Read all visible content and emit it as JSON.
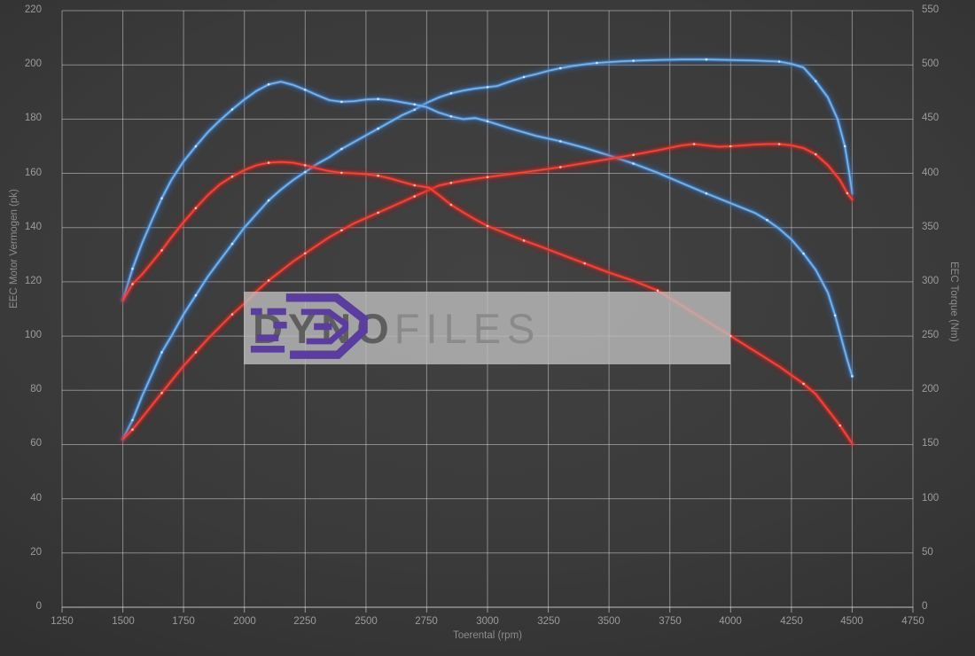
{
  "watermark": {
    "brand_bold": "DYNO",
    "brand_light": "FILES",
    "logo_color": "#5a3d9e",
    "bar_color": "rgba(189,189,189,0.8)"
  },
  "colors": {
    "blue_glow": "#2d6cbe",
    "blue_mid": "#4e93d9",
    "blue_core": "#79b5ec",
    "blue_dot": "#d9ecff",
    "red_glow": "#b51d1d",
    "red_mid": "#dd3127",
    "red_core": "#f4483a",
    "red_dot": "#ffd0c8",
    "grid": "rgba(219,219,219,0.5)",
    "axis_line": "rgba(228,228,228,0.8)",
    "tick": "#9c9c9c"
  },
  "chart_data": {
    "type": "line",
    "xlabel": "Toerental (rpm)",
    "ylabel_left": "EEC Motor Vermogen (pk)",
    "ylabel_right": "EEC Torque (Nm)",
    "xlim": [
      1250,
      4750
    ],
    "ylim_left": [
      0,
      220
    ],
    "ylim_right": [
      0,
      550
    ],
    "xticks": [
      1250,
      1500,
      1750,
      2000,
      2250,
      2500,
      2750,
      3000,
      3250,
      3500,
      3750,
      4000,
      4250,
      4500,
      4750
    ],
    "yticks_left": [
      0,
      20,
      40,
      60,
      80,
      100,
      120,
      140,
      160,
      180,
      200,
      220
    ],
    "yticks_right": [
      0,
      50,
      100,
      150,
      200,
      250,
      300,
      350,
      400,
      450,
      500,
      550
    ],
    "grid": true,
    "legend": "none",
    "series": [
      {
        "name": "power-tuned-blue",
        "axis": "left",
        "unit": "pk",
        "color_key": "blue",
        "points": [
          [
            1500,
            62
          ],
          [
            1540,
            69
          ],
          [
            1580,
            78
          ],
          [
            1620,
            86
          ],
          [
            1660,
            94
          ],
          [
            1700,
            100
          ],
          [
            1750,
            108
          ],
          [
            1800,
            115
          ],
          [
            1850,
            122
          ],
          [
            1900,
            128
          ],
          [
            1950,
            134
          ],
          [
            2000,
            140
          ],
          [
            2050,
            145
          ],
          [
            2100,
            150
          ],
          [
            2150,
            154
          ],
          [
            2200,
            157.5
          ],
          [
            2250,
            160.5
          ],
          [
            2300,
            163.5
          ],
          [
            2350,
            166
          ],
          [
            2400,
            169
          ],
          [
            2450,
            171.5
          ],
          [
            2500,
            174
          ],
          [
            2550,
            176.5
          ],
          [
            2600,
            179
          ],
          [
            2650,
            181.5
          ],
          [
            2700,
            183.5
          ],
          [
            2750,
            186
          ],
          [
            2800,
            188
          ],
          [
            2850,
            189.5
          ],
          [
            2900,
            190.5
          ],
          [
            2950,
            191.3
          ],
          [
            3000,
            191.8
          ],
          [
            3040,
            192.2
          ],
          [
            3090,
            193.8
          ],
          [
            3150,
            195.5
          ],
          [
            3200,
            196.6
          ],
          [
            3250,
            197.8
          ],
          [
            3300,
            198.8
          ],
          [
            3350,
            199.6
          ],
          [
            3400,
            200.2
          ],
          [
            3450,
            200.7
          ],
          [
            3500,
            201
          ],
          [
            3550,
            201.3
          ],
          [
            3600,
            201.5
          ],
          [
            3700,
            201.8
          ],
          [
            3800,
            202
          ],
          [
            3900,
            202
          ],
          [
            4000,
            201.8
          ],
          [
            4100,
            201.6
          ],
          [
            4200,
            201.2
          ],
          [
            4250,
            200.4
          ],
          [
            4300,
            199
          ],
          [
            4350,
            194
          ],
          [
            4400,
            188
          ],
          [
            4440,
            180
          ],
          [
            4470,
            170
          ],
          [
            4490,
            159
          ],
          [
            4500,
            152.5
          ]
        ]
      },
      {
        "name": "torque-tuned-blue",
        "axis": "right",
        "unit": "Nm",
        "color_key": "blue",
        "points": [
          [
            1500,
            283
          ],
          [
            1540,
            312
          ],
          [
            1580,
            336
          ],
          [
            1620,
            357
          ],
          [
            1660,
            377
          ],
          [
            1700,
            394
          ],
          [
            1750,
            411
          ],
          [
            1800,
            425
          ],
          [
            1850,
            438
          ],
          [
            1900,
            449
          ],
          [
            1950,
            459
          ],
          [
            2000,
            468
          ],
          [
            2050,
            476
          ],
          [
            2100,
            482
          ],
          [
            2150,
            484.5
          ],
          [
            2200,
            481.5
          ],
          [
            2250,
            477
          ],
          [
            2300,
            472
          ],
          [
            2350,
            467.5
          ],
          [
            2400,
            466
          ],
          [
            2450,
            466.5
          ],
          [
            2500,
            468
          ],
          [
            2550,
            468.5
          ],
          [
            2600,
            467.5
          ],
          [
            2650,
            465.5
          ],
          [
            2700,
            463.5
          ],
          [
            2750,
            461
          ],
          [
            2800,
            456
          ],
          [
            2850,
            452.5
          ],
          [
            2900,
            450
          ],
          [
            2950,
            451
          ],
          [
            3000,
            448
          ],
          [
            3100,
            441
          ],
          [
            3200,
            434.5
          ],
          [
            3300,
            429.5
          ],
          [
            3400,
            423.5
          ],
          [
            3500,
            416.5
          ],
          [
            3600,
            409
          ],
          [
            3700,
            400.5
          ],
          [
            3800,
            391
          ],
          [
            3900,
            381.5
          ],
          [
            4000,
            372.5
          ],
          [
            4100,
            363.5
          ],
          [
            4150,
            357
          ],
          [
            4200,
            349
          ],
          [
            4250,
            339
          ],
          [
            4300,
            326
          ],
          [
            4350,
            311
          ],
          [
            4400,
            290
          ],
          [
            4430,
            269
          ],
          [
            4460,
            244
          ],
          [
            4480,
            228
          ],
          [
            4500,
            213
          ]
        ]
      },
      {
        "name": "power-original-red",
        "axis": "left",
        "unit": "pk",
        "color_key": "red",
        "points": [
          [
            1500,
            62
          ],
          [
            1540,
            65.5
          ],
          [
            1580,
            70
          ],
          [
            1620,
            74.5
          ],
          [
            1660,
            79
          ],
          [
            1700,
            83.5
          ],
          [
            1750,
            89
          ],
          [
            1800,
            94
          ],
          [
            1850,
            99
          ],
          [
            1900,
            103.5
          ],
          [
            1950,
            108
          ],
          [
            2000,
            112
          ],
          [
            2050,
            116.5
          ],
          [
            2100,
            120.5
          ],
          [
            2150,
            124
          ],
          [
            2200,
            127.5
          ],
          [
            2250,
            130.5
          ],
          [
            2300,
            133.5
          ],
          [
            2350,
            136.5
          ],
          [
            2400,
            139
          ],
          [
            2450,
            141.5
          ],
          [
            2500,
            143.5
          ],
          [
            2550,
            145.5
          ],
          [
            2600,
            147.5
          ],
          [
            2650,
            149.5
          ],
          [
            2700,
            151.5
          ],
          [
            2750,
            153.5
          ],
          [
            2800,
            155.5
          ],
          [
            2850,
            156.5
          ],
          [
            2900,
            157.3
          ],
          [
            2950,
            158
          ],
          [
            3000,
            158.6
          ],
          [
            3100,
            159.8
          ],
          [
            3200,
            161
          ],
          [
            3300,
            162.3
          ],
          [
            3400,
            163.8
          ],
          [
            3500,
            165.3
          ],
          [
            3600,
            166.8
          ],
          [
            3700,
            168.5
          ],
          [
            3800,
            170.3
          ],
          [
            3850,
            170.8
          ],
          [
            3900,
            170.3
          ],
          [
            3950,
            169.8
          ],
          [
            4000,
            170
          ],
          [
            4100,
            170.6
          ],
          [
            4150,
            170.8
          ],
          [
            4200,
            170.8
          ],
          [
            4250,
            170.3
          ],
          [
            4300,
            169.3
          ],
          [
            4350,
            167
          ],
          [
            4400,
            163
          ],
          [
            4450,
            157.5
          ],
          [
            4480,
            152.7
          ],
          [
            4500,
            150.3
          ]
        ]
      },
      {
        "name": "torque-original-red",
        "axis": "right",
        "unit": "Nm",
        "color_key": "red",
        "points": [
          [
            1500,
            283
          ],
          [
            1540,
            298
          ],
          [
            1580,
            307
          ],
          [
            1620,
            318
          ],
          [
            1660,
            329
          ],
          [
            1700,
            341
          ],
          [
            1750,
            355
          ],
          [
            1800,
            368
          ],
          [
            1850,
            380
          ],
          [
            1900,
            390
          ],
          [
            1950,
            397
          ],
          [
            2000,
            403
          ],
          [
            2050,
            407.5
          ],
          [
            2100,
            409.8
          ],
          [
            2150,
            410.5
          ],
          [
            2200,
            409.8
          ],
          [
            2250,
            407.5
          ],
          [
            2300,
            404.5
          ],
          [
            2350,
            402
          ],
          [
            2400,
            400.5
          ],
          [
            2450,
            400
          ],
          [
            2500,
            399.3
          ],
          [
            2550,
            397.8
          ],
          [
            2600,
            395.3
          ],
          [
            2650,
            392
          ],
          [
            2700,
            389
          ],
          [
            2760,
            386.8
          ],
          [
            2800,
            380
          ],
          [
            2850,
            371
          ],
          [
            2900,
            364
          ],
          [
            2950,
            357.5
          ],
          [
            3000,
            351.5
          ],
          [
            3050,
            347
          ],
          [
            3100,
            342.5
          ],
          [
            3150,
            338
          ],
          [
            3200,
            334
          ],
          [
            3300,
            325.5
          ],
          [
            3400,
            317
          ],
          [
            3500,
            308.5
          ],
          [
            3600,
            301
          ],
          [
            3700,
            292
          ],
          [
            3800,
            278
          ],
          [
            3900,
            264
          ],
          [
            4000,
            250
          ],
          [
            4100,
            236
          ],
          [
            4200,
            222
          ],
          [
            4300,
            206
          ],
          [
            4350,
            196.5
          ],
          [
            4400,
            182
          ],
          [
            4450,
            167.5
          ],
          [
            4500,
            151
          ]
        ]
      }
    ]
  }
}
